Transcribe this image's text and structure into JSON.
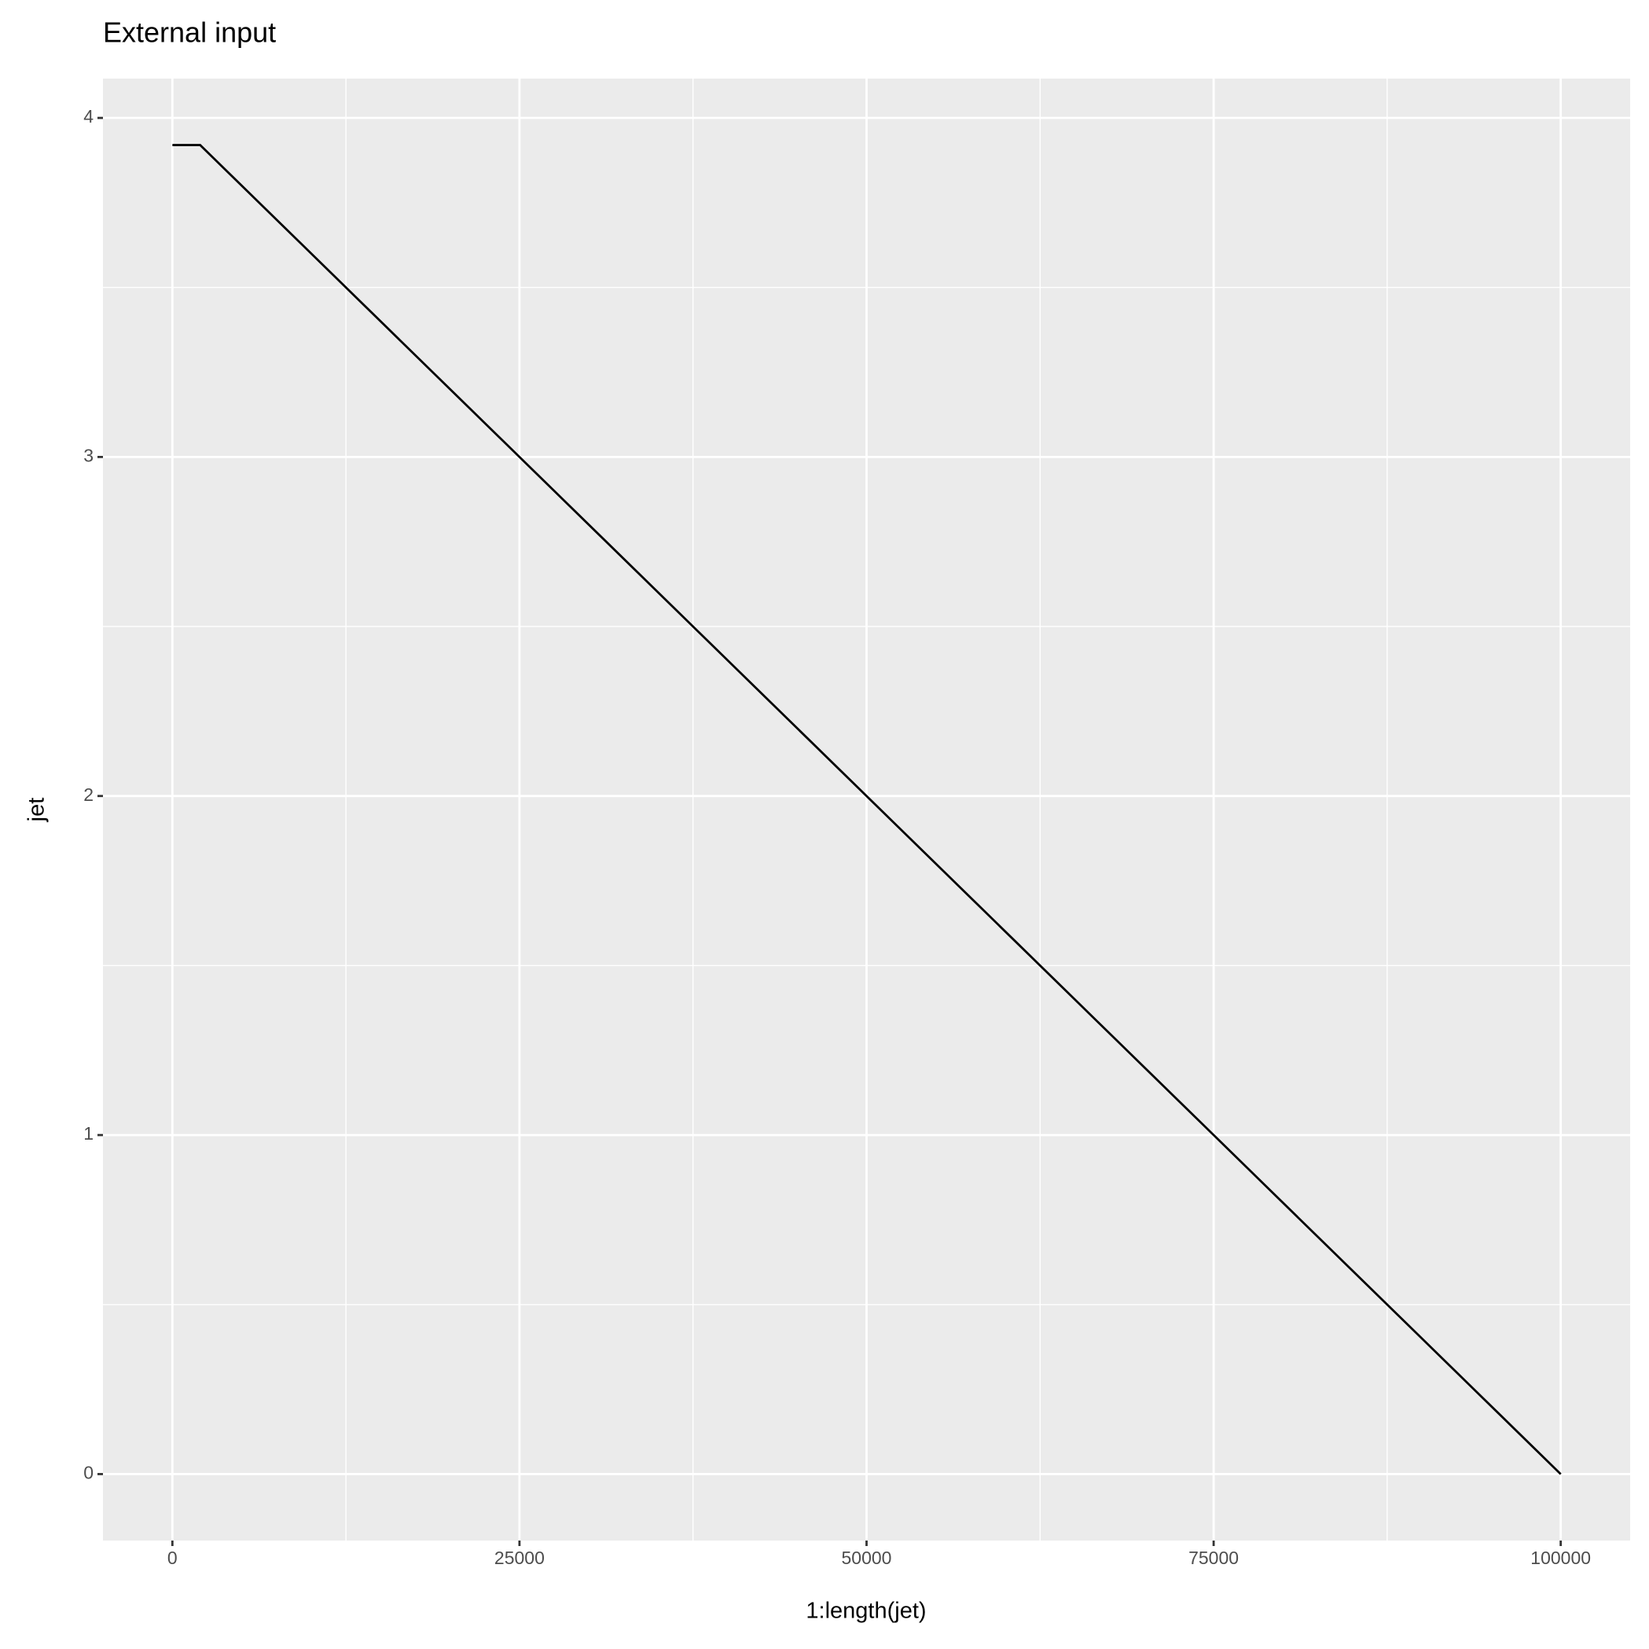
{
  "chart_data": {
    "type": "line",
    "title": "External input",
    "x_label": "1:length(jet)",
    "y_label": "jet",
    "series": [
      {
        "name": "jet",
        "color": "#000000",
        "x": [
          1,
          2000,
          100000
        ],
        "values": [
          3.92,
          3.92,
          0
        ]
      }
    ],
    "xlim": [
      -5000,
      105000
    ],
    "xticks": [
      0,
      25000,
      50000,
      75000,
      100000
    ],
    "ylim": [
      -0.196,
      4.116
    ],
    "yticks": [
      0,
      1,
      2,
      3,
      4
    ],
    "grid": true,
    "minor_grid": true,
    "panel_color": "#ebebeb",
    "grid_color": "#ffffff"
  }
}
